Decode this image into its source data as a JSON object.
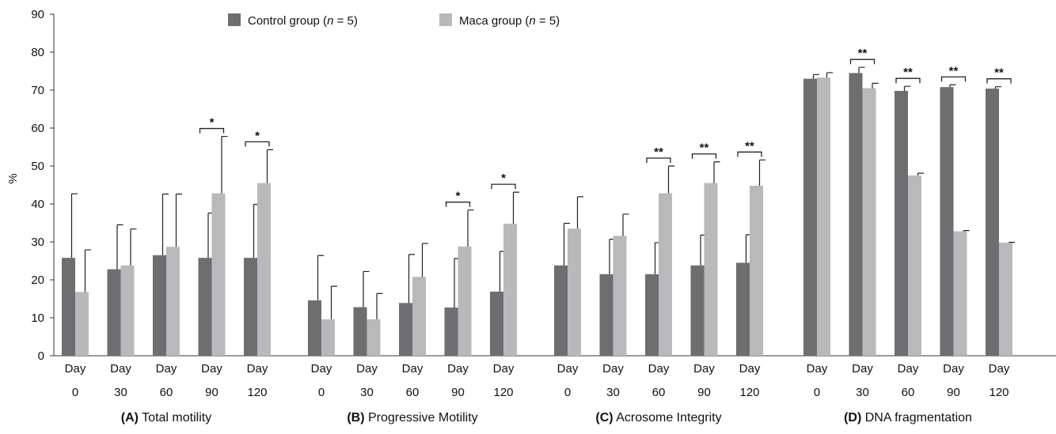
{
  "chart_data": {
    "type": "bar",
    "ylabel": "%",
    "ylim": [
      0,
      90
    ],
    "yticks": [
      0,
      10,
      20,
      30,
      40,
      50,
      60,
      70,
      80,
      90
    ],
    "grid": false,
    "legend_position": "top-center",
    "series_info": [
      {
        "name": "Control group (n = 5)",
        "name_prefix": "Control group (",
        "name_italic": "n",
        "name_suffix": " = 5)",
        "color": "#6e6e70"
      },
      {
        "name": "Maca group (n = 5)",
        "name_prefix": "Maca group (",
        "name_italic": "n",
        "name_suffix": " = 5)",
        "color": "#b8b9bb"
      }
    ],
    "categories": [
      {
        "line1": "Day",
        "line2": "0"
      },
      {
        "line1": "Day",
        "line2": "30"
      },
      {
        "line1": "Day",
        "line2": "60"
      },
      {
        "line1": "Day",
        "line2": "90"
      },
      {
        "line1": "Day",
        "line2": "120"
      }
    ],
    "panels": [
      {
        "letter": "(A)",
        "title": "Total motility",
        "series": [
          {
            "name": "Control group (n = 5)",
            "values": [
              25.8,
              22.8,
              26.5,
              25.8,
              25.8
            ],
            "errors": [
              16.9,
              11.7,
              16.1,
              11.8,
              14.1
            ]
          },
          {
            "name": "Maca group (n = 5)",
            "values": [
              16.8,
              23.8,
              28.7,
              42.8,
              45.5
            ],
            "errors": [
              11.1,
              9.6,
              13.9,
              15.0,
              8.8
            ]
          }
        ],
        "significance": [
          "",
          "",
          "",
          "*",
          "*"
        ]
      },
      {
        "letter": "(B)",
        "title": "Progressive Motility",
        "series": [
          {
            "name": "Control group (n = 5)",
            "values": [
              14.6,
              12.8,
              13.9,
              12.7,
              16.9
            ],
            "errors": [
              11.8,
              9.4,
              12.8,
              12.9,
              10.6
            ]
          },
          {
            "name": "Maca group (n = 5)",
            "values": [
              9.6,
              9.6,
              20.8,
              28.8,
              34.8
            ],
            "errors": [
              8.7,
              6.8,
              8.8,
              9.6,
              8.3
            ]
          }
        ],
        "significance": [
          "",
          "",
          "",
          "*",
          "*"
        ]
      },
      {
        "letter": "(C)",
        "title": "Acrosome Integrity",
        "series": [
          {
            "name": "Control group (n = 5)",
            "values": [
              23.8,
              21.5,
              21.5,
              23.8,
              24.5
            ],
            "errors": [
              11.1,
              9.2,
              8.3,
              8.0,
              7.4
            ]
          },
          {
            "name": "Maca group (n = 5)",
            "values": [
              33.5,
              31.6,
              42.8,
              45.5,
              44.8
            ],
            "errors": [
              8.4,
              5.7,
              7.2,
              5.6,
              6.8
            ]
          }
        ],
        "significance": [
          "",
          "",
          "**",
          "**",
          "**"
        ]
      },
      {
        "letter": "(D)",
        "title": "DNA fragmentation",
        "series": [
          {
            "name": "Control group (n = 5)",
            "values": [
              73.0,
              74.5,
              69.8,
              70.8,
              70.4
            ],
            "errors": [
              1.1,
              1.5,
              1.2,
              0.6,
              0.5
            ]
          },
          {
            "name": "Maca group (n = 5)",
            "values": [
              73.3,
              70.5,
              47.5,
              32.8,
              29.8
            ],
            "errors": [
              1.3,
              1.3,
              0.6,
              0.2,
              0.1
            ]
          }
        ],
        "significance": [
          "",
          "**",
          "**",
          "**",
          "**"
        ]
      }
    ]
  }
}
